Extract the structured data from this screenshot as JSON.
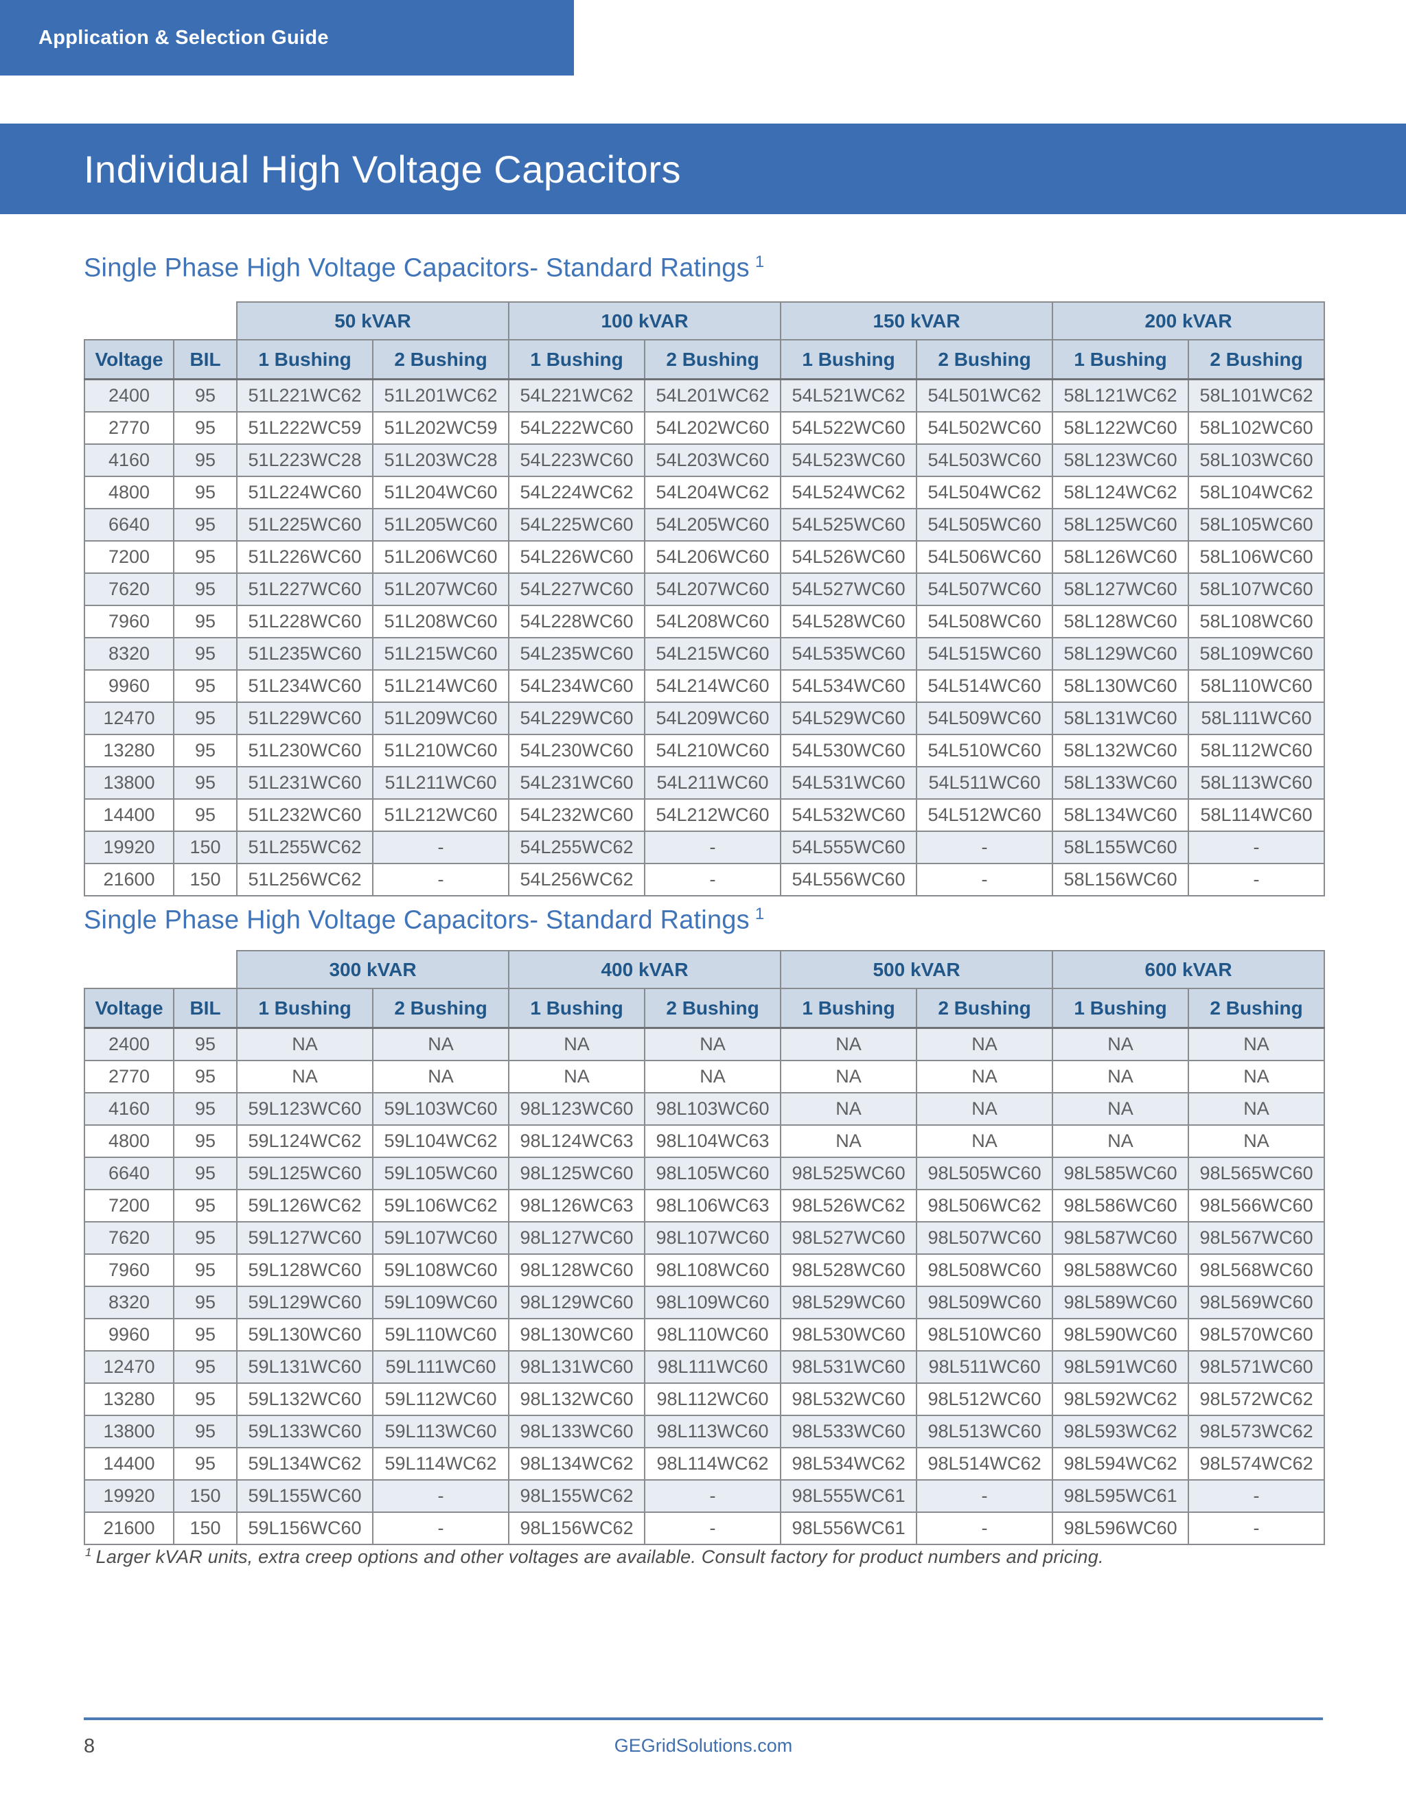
{
  "page": {
    "banner": "Application & Selection Guide",
    "title": "Individual High Voltage Capacitors",
    "footnote_marker": "1",
    "footnote": "Larger kVAR units, extra creep options and other voltages are available.  Consult factory for product numbers and pricing.",
    "page_number": "8",
    "footer_link": "GEGridSolutions.com"
  },
  "colors": {
    "banner_blue": "#3c6eb4",
    "heading_blue": "#4074b8",
    "table_header_text": "#215689",
    "table_header_bg": "#ccd8e5",
    "alt_row_bg": "#e8edf4",
    "border_gray": "#888c90",
    "cell_text": "#5e5f61",
    "footer_rule_blue": "#4d7cb5",
    "footer_link_blue": "#3f6fae"
  },
  "tables": [
    {
      "heading": "Single Phase High Voltage Capacitors- Standard Ratings",
      "heading_sup": "1",
      "kvar_groups": [
        "50 kVAR",
        "100 kVAR",
        "150 kVAR",
        "200 kVAR"
      ],
      "voltage_header": "Voltage",
      "bil_header": "BIL",
      "bushing_headers": [
        "1 Bushing",
        "2 Bushing"
      ],
      "rows": [
        {
          "voltage": "2400",
          "bil": "95",
          "cells": [
            "51L221WC62",
            "51L201WC62",
            "54L221WC62",
            "54L201WC62",
            "54L521WC62",
            "54L501WC62",
            "58L121WC62",
            "58L101WC62"
          ]
        },
        {
          "voltage": "2770",
          "bil": "95",
          "cells": [
            "51L222WC59",
            "51L202WC59",
            "54L222WC60",
            "54L202WC60",
            "54L522WC60",
            "54L502WC60",
            "58L122WC60",
            "58L102WC60"
          ]
        },
        {
          "voltage": "4160",
          "bil": "95",
          "cells": [
            "51L223WC28",
            "51L203WC28",
            "54L223WC60",
            "54L203WC60",
            "54L523WC60",
            "54L503WC60",
            "58L123WC60",
            "58L103WC60"
          ]
        },
        {
          "voltage": "4800",
          "bil": "95",
          "cells": [
            "51L224WC60",
            "51L204WC60",
            "54L224WC62",
            "54L204WC62",
            "54L524WC62",
            "54L504WC62",
            "58L124WC62",
            "58L104WC62"
          ]
        },
        {
          "voltage": "6640",
          "bil": "95",
          "cells": [
            "51L225WC60",
            "51L205WC60",
            "54L225WC60",
            "54L205WC60",
            "54L525WC60",
            "54L505WC60",
            "58L125WC60",
            "58L105WC60"
          ]
        },
        {
          "voltage": "7200",
          "bil": "95",
          "cells": [
            "51L226WC60",
            "51L206WC60",
            "54L226WC60",
            "54L206WC60",
            "54L526WC60",
            "54L506WC60",
            "58L126WC60",
            "58L106WC60"
          ]
        },
        {
          "voltage": "7620",
          "bil": "95",
          "cells": [
            "51L227WC60",
            "51L207WC60",
            "54L227WC60",
            "54L207WC60",
            "54L527WC60",
            "54L507WC60",
            "58L127WC60",
            "58L107WC60"
          ]
        },
        {
          "voltage": "7960",
          "bil": "95",
          "cells": [
            "51L228WC60",
            "51L208WC60",
            "54L228WC60",
            "54L208WC60",
            "54L528WC60",
            "54L508WC60",
            "58L128WC60",
            "58L108WC60"
          ]
        },
        {
          "voltage": "8320",
          "bil": "95",
          "cells": [
            "51L235WC60",
            "51L215WC60",
            "54L235WC60",
            "54L215WC60",
            "54L535WC60",
            "54L515WC60",
            "58L129WC60",
            "58L109WC60"
          ]
        },
        {
          "voltage": "9960",
          "bil": "95",
          "cells": [
            "51L234WC60",
            "51L214WC60",
            "54L234WC60",
            "54L214WC60",
            "54L534WC60",
            "54L514WC60",
            "58L130WC60",
            "58L110WC60"
          ]
        },
        {
          "voltage": "12470",
          "bil": "95",
          "cells": [
            "51L229WC60",
            "51L209WC60",
            "54L229WC60",
            "54L209WC60",
            "54L529WC60",
            "54L509WC60",
            "58L131WC60",
            "58L111WC60"
          ]
        },
        {
          "voltage": "13280",
          "bil": "95",
          "cells": [
            "51L230WC60",
            "51L210WC60",
            "54L230WC60",
            "54L210WC60",
            "54L530WC60",
            "54L510WC60",
            "58L132WC60",
            "58L112WC60"
          ]
        },
        {
          "voltage": "13800",
          "bil": "95",
          "cells": [
            "51L231WC60",
            "51L211WC60",
            "54L231WC60",
            "54L211WC60",
            "54L531WC60",
            "54L511WC60",
            "58L133WC60",
            "58L113WC60"
          ]
        },
        {
          "voltage": "14400",
          "bil": "95",
          "cells": [
            "51L232WC60",
            "51L212WC60",
            "54L232WC60",
            "54L212WC60",
            "54L532WC60",
            "54L512WC60",
            "58L134WC60",
            "58L114WC60"
          ]
        },
        {
          "voltage": "19920",
          "bil": "150",
          "cells": [
            "51L255WC62",
            "-",
            "54L255WC62",
            "-",
            "54L555WC60",
            "-",
            "58L155WC60",
            "-"
          ]
        },
        {
          "voltage": "21600",
          "bil": "150",
          "cells": [
            "51L256WC62",
            "-",
            "54L256WC62",
            "-",
            "54L556WC60",
            "-",
            "58L156WC60",
            "-"
          ]
        }
      ]
    },
    {
      "heading": "Single Phase High Voltage Capacitors- Standard Ratings",
      "heading_sup": "1",
      "kvar_groups": [
        "300 kVAR",
        "400 kVAR",
        "500 kVAR",
        "600 kVAR"
      ],
      "voltage_header": "Voltage",
      "bil_header": "BIL",
      "bushing_headers": [
        "1 Bushing",
        "2 Bushing"
      ],
      "rows": [
        {
          "voltage": "2400",
          "bil": "95",
          "cells": [
            "NA",
            "NA",
            "NA",
            "NA",
            "NA",
            "NA",
            "NA",
            "NA"
          ]
        },
        {
          "voltage": "2770",
          "bil": "95",
          "cells": [
            "NA",
            "NA",
            "NA",
            "NA",
            "NA",
            "NA",
            "NA",
            "NA"
          ]
        },
        {
          "voltage": "4160",
          "bil": "95",
          "cells": [
            "59L123WC60",
            "59L103WC60",
            "98L123WC60",
            "98L103WC60",
            "NA",
            "NA",
            "NA",
            "NA"
          ]
        },
        {
          "voltage": "4800",
          "bil": "95",
          "cells": [
            "59L124WC62",
            "59L104WC62",
            "98L124WC63",
            "98L104WC63",
            "NA",
            "NA",
            "NA",
            "NA"
          ]
        },
        {
          "voltage": "6640",
          "bil": "95",
          "cells": [
            "59L125WC60",
            "59L105WC60",
            "98L125WC60",
            "98L105WC60",
            "98L525WC60",
            "98L505WC60",
            "98L585WC60",
            "98L565WC60"
          ]
        },
        {
          "voltage": "7200",
          "bil": "95",
          "cells": [
            "59L126WC62",
            "59L106WC62",
            "98L126WC63",
            "98L106WC63",
            "98L526WC62",
            "98L506WC62",
            "98L586WC60",
            "98L566WC60"
          ]
        },
        {
          "voltage": "7620",
          "bil": "95",
          "cells": [
            "59L127WC60",
            "59L107WC60",
            "98L127WC60",
            "98L107WC60",
            "98L527WC60",
            "98L507WC60",
            "98L587WC60",
            "98L567WC60"
          ]
        },
        {
          "voltage": "7960",
          "bil": "95",
          "cells": [
            "59L128WC60",
            "59L108WC60",
            "98L128WC60",
            "98L108WC60",
            "98L528WC60",
            "98L508WC60",
            "98L588WC60",
            "98L568WC60"
          ]
        },
        {
          "voltage": "8320",
          "bil": "95",
          "cells": [
            "59L129WC60",
            "59L109WC60",
            "98L129WC60",
            "98L109WC60",
            "98L529WC60",
            "98L509WC60",
            "98L589WC60",
            "98L569WC60"
          ]
        },
        {
          "voltage": "9960",
          "bil": "95",
          "cells": [
            "59L130WC60",
            "59L110WC60",
            "98L130WC60",
            "98L110WC60",
            "98L530WC60",
            "98L510WC60",
            "98L590WC60",
            "98L570WC60"
          ]
        },
        {
          "voltage": "12470",
          "bil": "95",
          "cells": [
            "59L131WC60",
            "59L111WC60",
            "98L131WC60",
            "98L111WC60",
            "98L531WC60",
            "98L511WC60",
            "98L591WC60",
            "98L571WC60"
          ]
        },
        {
          "voltage": "13280",
          "bil": "95",
          "cells": [
            "59L132WC60",
            "59L112WC60",
            "98L132WC60",
            "98L112WC60",
            "98L532WC60",
            "98L512WC60",
            "98L592WC62",
            "98L572WC62"
          ]
        },
        {
          "voltage": "13800",
          "bil": "95",
          "cells": [
            "59L133WC60",
            "59L113WC60",
            "98L133WC60",
            "98L113WC60",
            "98L533WC60",
            "98L513WC60",
            "98L593WC62",
            "98L573WC62"
          ]
        },
        {
          "voltage": "14400",
          "bil": "95",
          "cells": [
            "59L134WC62",
            "59L114WC62",
            "98L134WC62",
            "98L114WC62",
            "98L534WC62",
            "98L514WC62",
            "98L594WC62",
            "98L574WC62"
          ]
        },
        {
          "voltage": "19920",
          "bil": "150",
          "cells": [
            "59L155WC60",
            "-",
            "98L155WC62",
            "-",
            "98L555WC61",
            "-",
            "98L595WC61",
            "-"
          ]
        },
        {
          "voltage": "21600",
          "bil": "150",
          "cells": [
            "59L156WC60",
            "-",
            "98L156WC62",
            "-",
            "98L556WC61",
            "-",
            "98L596WC60",
            "-"
          ]
        }
      ]
    }
  ]
}
